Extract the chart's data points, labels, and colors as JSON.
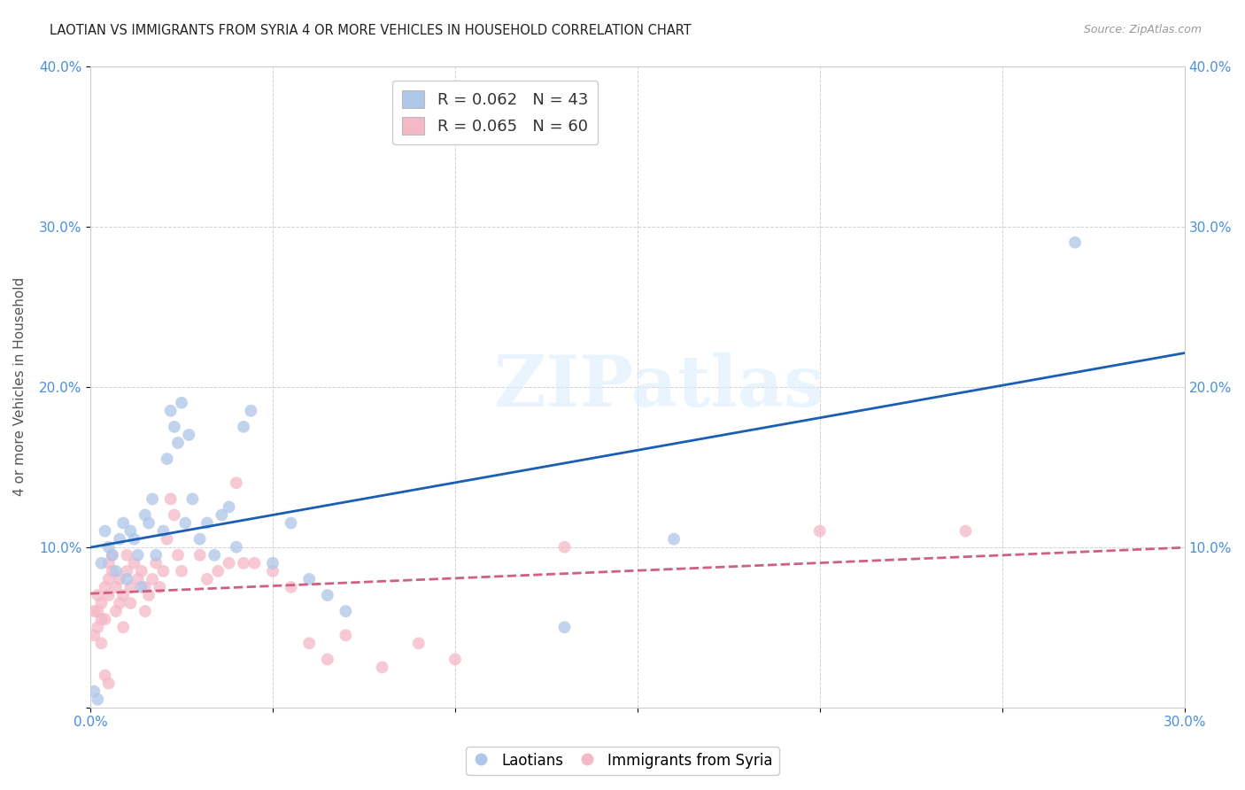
{
  "title": "LAOTIAN VS IMMIGRANTS FROM SYRIA 4 OR MORE VEHICLES IN HOUSEHOLD CORRELATION CHART",
  "source": "Source: ZipAtlas.com",
  "ylabel": "4 or more Vehicles in Household",
  "xmin": 0.0,
  "xmax": 0.3,
  "ymin": 0.0,
  "ymax": 0.4,
  "xticks": [
    0.0,
    0.05,
    0.1,
    0.15,
    0.2,
    0.25,
    0.3
  ],
  "yticks": [
    0.0,
    0.1,
    0.2,
    0.3,
    0.4
  ],
  "xtick_labels": [
    "0.0%",
    "",
    "",
    "",
    "",
    "",
    "30.0%"
  ],
  "ytick_labels_left": [
    "",
    "10.0%",
    "20.0%",
    "30.0%",
    "40.0%"
  ],
  "ytick_labels_right": [
    "",
    "10.0%",
    "20.0%",
    "30.0%",
    "40.0%"
  ],
  "legend_r_entries": [
    {
      "label": "R = 0.062   N = 43",
      "color": "#aec6e8"
    },
    {
      "label": "R = 0.065   N = 60",
      "color": "#f4b8c8"
    }
  ],
  "series1_label": "Laotians",
  "series2_label": "Immigrants from Syria",
  "series1_color": "#aec6e8",
  "series2_color": "#f4b8c8",
  "series1_line_color": "#1a5fb4",
  "series2_line_color": "#d06080",
  "watermark_text": "ZIPatlas",
  "laotian_x": [
    0.001,
    0.002,
    0.003,
    0.004,
    0.005,
    0.006,
    0.007,
    0.008,
    0.009,
    0.01,
    0.011,
    0.012,
    0.013,
    0.014,
    0.015,
    0.016,
    0.017,
    0.018,
    0.02,
    0.021,
    0.022,
    0.023,
    0.024,
    0.025,
    0.026,
    0.027,
    0.028,
    0.03,
    0.032,
    0.034,
    0.036,
    0.038,
    0.04,
    0.042,
    0.044,
    0.05,
    0.055,
    0.06,
    0.065,
    0.07,
    0.13,
    0.16,
    0.27
  ],
  "laotian_y": [
    0.01,
    0.005,
    0.09,
    0.11,
    0.1,
    0.095,
    0.085,
    0.105,
    0.115,
    0.08,
    0.11,
    0.105,
    0.095,
    0.075,
    0.12,
    0.115,
    0.13,
    0.095,
    0.11,
    0.155,
    0.185,
    0.175,
    0.165,
    0.19,
    0.115,
    0.17,
    0.13,
    0.105,
    0.115,
    0.095,
    0.12,
    0.125,
    0.1,
    0.175,
    0.185,
    0.09,
    0.115,
    0.08,
    0.07,
    0.06,
    0.05,
    0.105,
    0.29
  ],
  "syria_x": [
    0.001,
    0.001,
    0.002,
    0.002,
    0.002,
    0.003,
    0.003,
    0.003,
    0.004,
    0.004,
    0.005,
    0.005,
    0.005,
    0.006,
    0.006,
    0.007,
    0.007,
    0.008,
    0.008,
    0.009,
    0.009,
    0.01,
    0.01,
    0.011,
    0.011,
    0.012,
    0.013,
    0.014,
    0.015,
    0.015,
    0.016,
    0.017,
    0.018,
    0.019,
    0.02,
    0.021,
    0.022,
    0.023,
    0.024,
    0.025,
    0.03,
    0.032,
    0.035,
    0.038,
    0.04,
    0.042,
    0.045,
    0.05,
    0.055,
    0.06,
    0.065,
    0.07,
    0.08,
    0.09,
    0.1,
    0.13,
    0.2,
    0.24,
    0.004,
    0.005
  ],
  "syria_y": [
    0.045,
    0.06,
    0.05,
    0.06,
    0.07,
    0.04,
    0.055,
    0.065,
    0.055,
    0.075,
    0.07,
    0.08,
    0.09,
    0.085,
    0.095,
    0.06,
    0.075,
    0.065,
    0.08,
    0.05,
    0.07,
    0.085,
    0.095,
    0.065,
    0.075,
    0.09,
    0.08,
    0.085,
    0.06,
    0.075,
    0.07,
    0.08,
    0.09,
    0.075,
    0.085,
    0.105,
    0.13,
    0.12,
    0.095,
    0.085,
    0.095,
    0.08,
    0.085,
    0.09,
    0.14,
    0.09,
    0.09,
    0.085,
    0.075,
    0.04,
    0.03,
    0.045,
    0.025,
    0.04,
    0.03,
    0.1,
    0.11,
    0.11,
    0.02,
    0.015
  ]
}
